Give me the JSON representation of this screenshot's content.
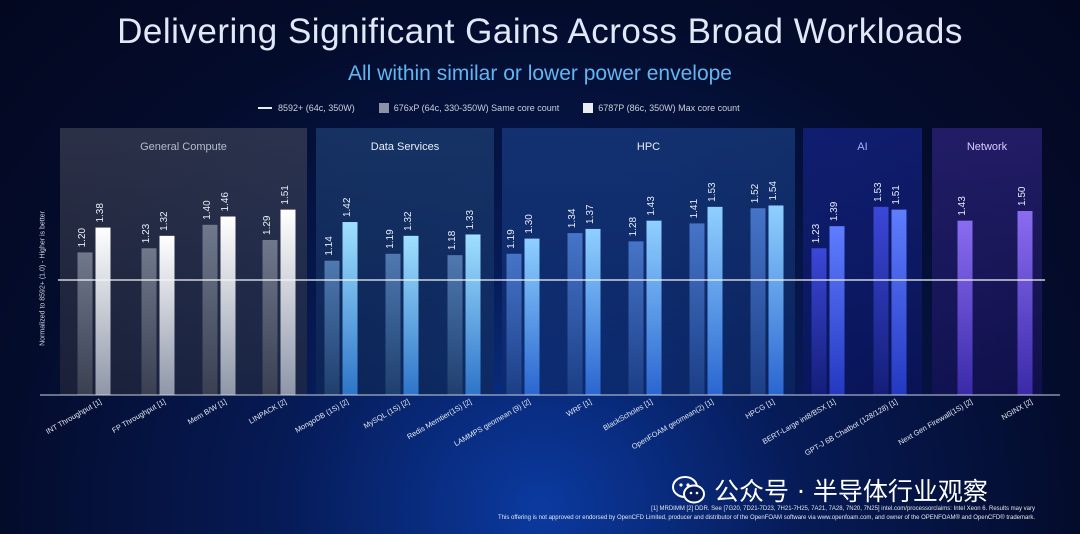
{
  "title": "Delivering Significant Gains Across Broad Workloads",
  "subtitle": "All within similar or lower power envelope",
  "legend": [
    {
      "label": "8592+ (64c, 350W)",
      "kind": "line",
      "color": "#e8eef6"
    },
    {
      "label": "676xP (64c, 330-350W) Same core count",
      "kind": "box",
      "color": "#8c93a6"
    },
    {
      "label": "6787P (86c, 350W) Max core count",
      "kind": "box",
      "color": "#e9ecf2"
    }
  ],
  "groups": [
    {
      "name": "General Compute",
      "color": "#4a4f60",
      "label_color": "#b5bccb"
    },
    {
      "name": "Data Services",
      "color": "#254d84",
      "label_color": "#e8eef8"
    },
    {
      "name": "HPC",
      "color": "#1e4a98",
      "label_color": "#e8eef8"
    },
    {
      "name": "AI",
      "color": "#1a2aa0",
      "label_color": "#9fb4ff"
    },
    {
      "name": "Network",
      "color": "#3b2b98",
      "label_color": "#d6ccff"
    }
  ],
  "chart_data": {
    "type": "bar",
    "title": "Delivering Significant Gains Across Broad Workloads",
    "subtitle": "All within similar or lower power envelope",
    "ylabel": "Normalized to 8592+ (1.0) - Higher is better",
    "baseline": 1.0,
    "ylim": [
      0.0,
      1.75
    ],
    "categories": [
      {
        "label": "INT Throughput [1]",
        "group": 0
      },
      {
        "label": "FP Throughput [1]",
        "group": 0
      },
      {
        "label": "Mem B/W [1]",
        "group": 0
      },
      {
        "label": "LINPACK [2]",
        "group": 0
      },
      {
        "label": "MongoDB (1S) [2]",
        "group": 1
      },
      {
        "label": "MySQL (1S) [2]",
        "group": 1
      },
      {
        "label": "Redis Memtier(1S) [2]",
        "group": 1
      },
      {
        "label": "LAMMPS geomean (9) [2]",
        "group": 2
      },
      {
        "label": "WRF [1]",
        "group": 2
      },
      {
        "label": "BlackScholes [1]",
        "group": 2
      },
      {
        "label": "OpenFOAM geomean(2) [1]",
        "group": 2
      },
      {
        "label": "HPCG [1]",
        "group": 2
      },
      {
        "label": "BERT-Large int8/BSX [1]",
        "group": 3
      },
      {
        "label": "GPT-J 6B Chatbot (128/128) [1]",
        "group": 3
      },
      {
        "label": "Next Gen Firewall(1S) [2]",
        "group": 4
      },
      {
        "label": "NGINX [2]",
        "group": 4
      }
    ],
    "series": [
      {
        "name": "676xP (64c, 330-350W) Same core count",
        "values": [
          1.2,
          1.23,
          1.4,
          1.29,
          1.14,
          1.19,
          1.18,
          1.19,
          1.34,
          1.28,
          1.41,
          1.52,
          1.23,
          1.53,
          null,
          null
        ]
      },
      {
        "name": "6787P (86c, 350W) Max core count",
        "values": [
          1.38,
          1.32,
          1.46,
          1.51,
          1.42,
          1.32,
          1.33,
          1.3,
          1.37,
          1.43,
          1.53,
          1.54,
          1.39,
          1.51,
          1.43,
          1.5
        ]
      }
    ]
  },
  "footnotes": [
    "[1]   MRDIMM     [2]  DDR. See [7G20, 7D21-7D23, 7H21-7H25, 7A21, 7A28, 7N20, 7N25] intel.com/processorclaims: Intel Xeon 6.  Results may vary",
    "This offering is not approved or endorsed by OpenCFD Limited, producer and distributor of the OpenFOAM software via www.openfoam.com, and owner of the OPENFOAM® and OpenCFD® trademark."
  ],
  "watermark": {
    "icon": "wechat-icon",
    "text": "公众号 · 半导体行业观察"
  }
}
